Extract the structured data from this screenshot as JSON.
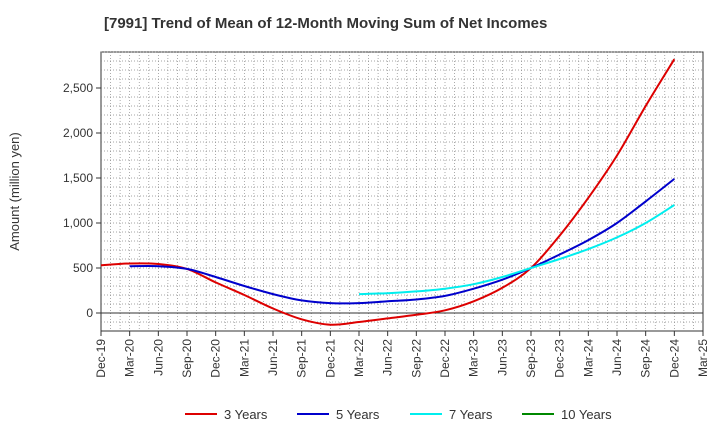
{
  "chart_data": {
    "type": "line",
    "title": "[7991]  Trend of Mean of 12-Month Moving Sum of Net Incomes",
    "xlabel": "",
    "ylabel": "Amount (million yen)",
    "ylim": [
      -200,
      2900
    ],
    "yticks": [
      0,
      500,
      1000,
      1500,
      2000,
      2500
    ],
    "ytick_labels": [
      "0",
      "500",
      "1,000",
      "1,500",
      "2,000",
      "2,500"
    ],
    "categories": [
      "Dec-19",
      "Mar-20",
      "Jun-20",
      "Sep-20",
      "Dec-20",
      "Mar-21",
      "Jun-21",
      "Sep-21",
      "Dec-21",
      "Mar-22",
      "Jun-22",
      "Sep-22",
      "Dec-22",
      "Mar-23",
      "Jun-23",
      "Sep-23",
      "Dec-23",
      "Mar-24",
      "Jun-24",
      "Sep-24",
      "Dec-24",
      "Mar-25"
    ],
    "grid": true,
    "legend_position": "bottom",
    "series": [
      {
        "name": "3 Years",
        "color": "#dd0000",
        "values": [
          530,
          550,
          545,
          490,
          340,
          200,
          50,
          -70,
          -130,
          -100,
          -60,
          -20,
          30,
          130,
          280,
          500,
          860,
          1280,
          1750,
          2300,
          2820,
          null
        ]
      },
      {
        "name": "5 Years",
        "color": "#0000cc",
        "values": [
          null,
          520,
          520,
          490,
          400,
          300,
          210,
          140,
          110,
          110,
          130,
          150,
          190,
          270,
          370,
          500,
          650,
          810,
          1000,
          1240,
          1490,
          null
        ]
      },
      {
        "name": "7 Years",
        "color": "#00eeee",
        "values": [
          null,
          null,
          null,
          null,
          null,
          null,
          null,
          null,
          null,
          210,
          220,
          240,
          270,
          320,
          400,
          500,
          600,
          710,
          840,
          1000,
          1200,
          null
        ]
      },
      {
        "name": "10 Years",
        "color": "#008800",
        "values": [
          null,
          null,
          null,
          null,
          null,
          null,
          null,
          null,
          null,
          null,
          null,
          null,
          null,
          null,
          null,
          null,
          null,
          null,
          null,
          null,
          null,
          null
        ]
      }
    ]
  }
}
